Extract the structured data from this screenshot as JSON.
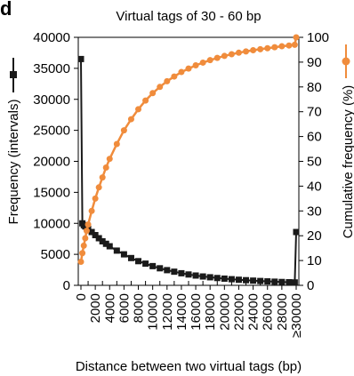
{
  "panel_label": "d",
  "chart_data": {
    "type": "line",
    "title": "Virtual tags of 30 - 60 bp",
    "xlabel": "Distance between two virtual tags (bp)",
    "ylabel_left": "Frequency (intervals)",
    "ylabel_right": "Cumulative frequency (%)",
    "x_tick_labels": [
      "0",
      "2000",
      "4000",
      "6000",
      "8000",
      "10000",
      "12000",
      "14000",
      "16000",
      "18000",
      "20000",
      "22000",
      "24000",
      "26000",
      "28000",
      "≥30000"
    ],
    "y_left_ticks": [
      0,
      5000,
      10000,
      15000,
      20000,
      25000,
      30000,
      35000,
      40000
    ],
    "y_right_ticks": [
      0,
      10,
      20,
      30,
      40,
      50,
      60,
      70,
      80,
      90,
      100
    ],
    "ylim_left": [
      0,
      40000
    ],
    "ylim_right": [
      0,
      100
    ],
    "xlim": [
      0,
      30000
    ],
    "grid": false,
    "series": [
      {
        "name": "Frequency (intervals)",
        "axis": "left",
        "color": "#1a1a1a",
        "marker": "square",
        "x": [
          0,
          200,
          400,
          600,
          800,
          1000,
          1500,
          2000,
          2500,
          3000,
          3500,
          4000,
          5000,
          6000,
          7000,
          8000,
          9000,
          10000,
          11000,
          12000,
          13000,
          14000,
          15000,
          16000,
          17000,
          18000,
          19000,
          20000,
          21000,
          22000,
          23000,
          24000,
          25000,
          26000,
          27000,
          28000,
          29000,
          29800,
          30000
        ],
        "values": [
          36500,
          10000,
          9700,
          9500,
          9300,
          9100,
          8600,
          8100,
          7600,
          7100,
          6700,
          6300,
          5600,
          5000,
          4400,
          3900,
          3500,
          3100,
          2750,
          2450,
          2200,
          1950,
          1750,
          1580,
          1430,
          1300,
          1180,
          1080,
          990,
          900,
          830,
          760,
          700,
          640,
          590,
          540,
          500,
          470,
          8600
        ]
      },
      {
        "name": "Cumulative frequency (%)",
        "axis": "right",
        "color": "#f08c3c",
        "marker": "circle",
        "x": [
          0,
          200,
          400,
          600,
          800,
          1000,
          1500,
          2000,
          2500,
          3000,
          3500,
          4000,
          5000,
          6000,
          7000,
          8000,
          9000,
          10000,
          11000,
          12000,
          13000,
          14000,
          15000,
          16000,
          17000,
          18000,
          19000,
          20000,
          21000,
          22000,
          23000,
          24000,
          25000,
          26000,
          27000,
          28000,
          29000,
          29800,
          30000
        ],
        "values": [
          9.5,
          13,
          16,
          19,
          22,
          24.5,
          30,
          35,
          39.5,
          43.5,
          47.5,
          51,
          57,
          62.5,
          67,
          71,
          74.5,
          77.5,
          80,
          82.3,
          84.2,
          86,
          87.4,
          88.7,
          89.8,
          90.8,
          91.7,
          92.5,
          93.2,
          93.8,
          94.3,
          94.8,
          95.2,
          95.6,
          96,
          96.4,
          96.7,
          97,
          100
        ]
      }
    ]
  }
}
